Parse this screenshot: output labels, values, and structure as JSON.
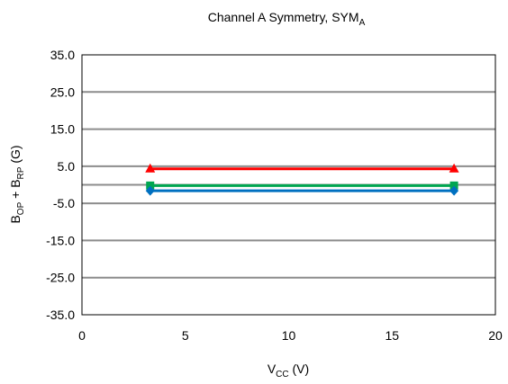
{
  "chart_data": {
    "type": "line",
    "title": {
      "text": "Channel A Symmetry, SYM",
      "sub": "A"
    },
    "xlabel": {
      "main": "V",
      "sub": "CC",
      "suffix": " (V)"
    },
    "ylabel": {
      "parts": [
        {
          "text": "B",
          "sub": false
        },
        {
          "text": "OP",
          "sub": true
        },
        {
          "text": " + B",
          "sub": false
        },
        {
          "text": "RP",
          "sub": true
        },
        {
          "text": " (G)",
          "sub": false
        }
      ]
    },
    "xlim": [
      0,
      20
    ],
    "ylim": [
      -35,
      35
    ],
    "xticks": [
      0,
      5,
      10,
      15,
      20
    ],
    "yticks": [
      35,
      25,
      15,
      5,
      -5,
      -15,
      -25,
      -35
    ],
    "ytick_labels": [
      "35.0",
      "25.0",
      "15.0",
      "5.0",
      "-5.0",
      "-15.0",
      "-25.0",
      "-35.0"
    ],
    "xtick_labels": [
      "0",
      "5",
      "10",
      "15",
      "20"
    ],
    "grid": true,
    "zero_line": true,
    "series": [
      {
        "color": "#ff0000",
        "marker": "triangle",
        "x": [
          3.3,
          18
        ],
        "y": [
          4.3,
          4.3
        ]
      },
      {
        "color": "#00a651",
        "marker": "square",
        "x": [
          3.3,
          18
        ],
        "y": [
          -0.2,
          -0.2
        ]
      },
      {
        "color": "#0070c0",
        "marker": "diamond",
        "x": [
          3.3,
          18
        ],
        "y": [
          -1.6,
          -1.6
        ]
      }
    ]
  }
}
